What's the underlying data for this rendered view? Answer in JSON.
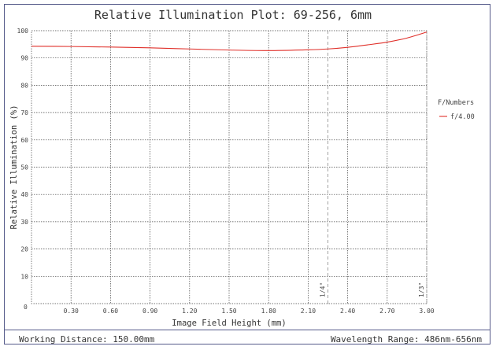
{
  "page": {
    "title": "Relative Illumination Plot: 69-256, 6mm",
    "footer_left": "Working Distance: 150.00mm",
    "footer_right": "Wavelength Range: 486nm-656nm"
  },
  "colors": {
    "frame": "#555a8a",
    "series": "#e0302a",
    "grid": "#444444",
    "marker_line": "#999999"
  },
  "chart_data": {
    "type": "line",
    "title": "Relative Illumination Plot: 69-256, 6mm",
    "xlabel": "Image Field Height (mm)",
    "ylabel": "Relative Illumination (%)",
    "xlim": [
      0,
      3.0
    ],
    "ylim": [
      0,
      100
    ],
    "x_ticks": [
      "0",
      "0.30",
      "0.60",
      "0.90",
      "1.20",
      "1.50",
      "1.80",
      "2.10",
      "2.40",
      "2.70",
      "3.00"
    ],
    "y_ticks": [
      "0",
      "10",
      "20",
      "30",
      "40",
      "50",
      "60",
      "70",
      "80",
      "90",
      "100"
    ],
    "grid": true,
    "legend_title": "F/Numbers",
    "legend_position": "right",
    "series": [
      {
        "name": "f/4.00",
        "x": [
          0,
          0.3,
          0.6,
          0.9,
          1.2,
          1.5,
          1.8,
          2.1,
          2.25,
          2.4,
          2.55,
          2.7,
          2.85,
          3.0
        ],
        "y": [
          94.3,
          94.2,
          94.0,
          93.7,
          93.3,
          92.9,
          92.7,
          93.0,
          93.3,
          93.9,
          94.8,
          95.8,
          97.3,
          99.5
        ]
      }
    ],
    "markers": [
      {
        "label": "1/4\"",
        "x": 2.25
      },
      {
        "label": "1/3\"",
        "x": 3.0
      }
    ]
  }
}
